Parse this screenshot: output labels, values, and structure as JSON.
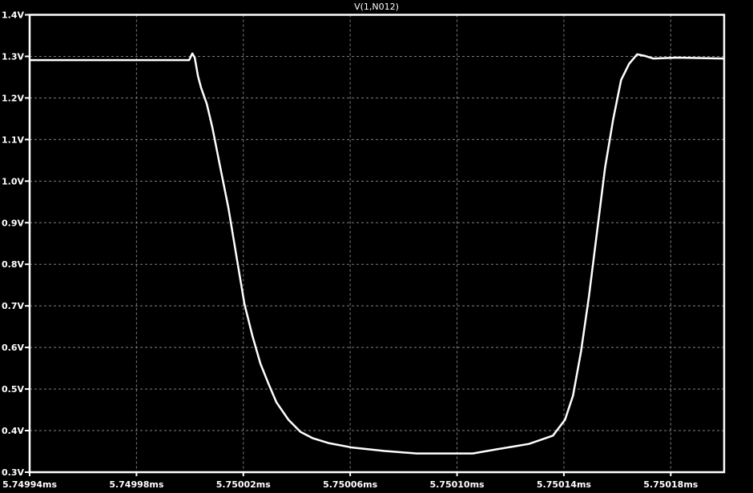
{
  "chart_data": {
    "type": "line",
    "title": "V(1,N012)",
    "xlabel": "",
    "ylabel": "",
    "xlim": [
      5.74994,
      5.7502
    ],
    "ylim": [
      0.3,
      1.4
    ],
    "grid": true,
    "x_ticks": [
      5.74994,
      5.74998,
      5.75002,
      5.75006,
      5.7501,
      5.75014,
      5.75018
    ],
    "x_tick_labels": [
      "5.74994ms",
      "5.74998ms",
      "5.75002ms",
      "5.75006ms",
      "5.75010ms",
      "5.75014ms",
      "5.75018ms"
    ],
    "y_ticks": [
      0.3,
      0.4,
      0.5,
      0.6,
      0.7,
      0.8,
      0.9,
      1.0,
      1.1,
      1.2,
      1.3,
      1.4
    ],
    "y_tick_labels": [
      "0.3V",
      "0.4V",
      "0.5V",
      "0.6V",
      "0.7V",
      "0.8V",
      "0.9V",
      "1.0V",
      "1.1V",
      "1.2V",
      "1.3V",
      "1.4V"
    ],
    "colors": {
      "background": "#000000",
      "trace": "#ffffff",
      "grid": "#808080",
      "axes": "#ffffff"
    },
    "series": [
      {
        "name": "V(1,N012)",
        "x": [
          5.74994,
          5.7499997,
          5.7500009,
          5.7500018,
          5.750003,
          5.7500042,
          5.7500063,
          5.7500084,
          5.7500114,
          5.7500144,
          5.7500174,
          5.7500204,
          5.7500234,
          5.7500264,
          5.7500294,
          5.7500324,
          5.7500369,
          5.7500414,
          5.7500459,
          5.7500519,
          5.7500609,
          5.7500729,
          5.7500849,
          5.7500969,
          5.7501059,
          5.7501149,
          5.7501269,
          5.7501359,
          5.7501404,
          5.7501434,
          5.7501464,
          5.7501494,
          5.7501524,
          5.7501554,
          5.7501584,
          5.7501614,
          5.7501644,
          5.7501674,
          5.7501704,
          5.7501734,
          5.7501824,
          5.7502001
        ],
        "y": [
          1.291,
          1.291,
          1.307,
          1.297,
          1.253,
          1.224,
          1.186,
          1.129,
          1.032,
          0.936,
          0.82,
          0.705,
          0.628,
          0.561,
          0.513,
          0.468,
          0.426,
          0.397,
          0.382,
          0.37,
          0.359,
          0.351,
          0.345,
          0.345,
          0.345,
          0.355,
          0.368,
          0.388,
          0.426,
          0.484,
          0.59,
          0.724,
          0.878,
          1.032,
          1.147,
          1.243,
          1.282,
          1.305,
          1.301,
          1.295,
          1.297,
          1.295
        ]
      }
    ]
  }
}
